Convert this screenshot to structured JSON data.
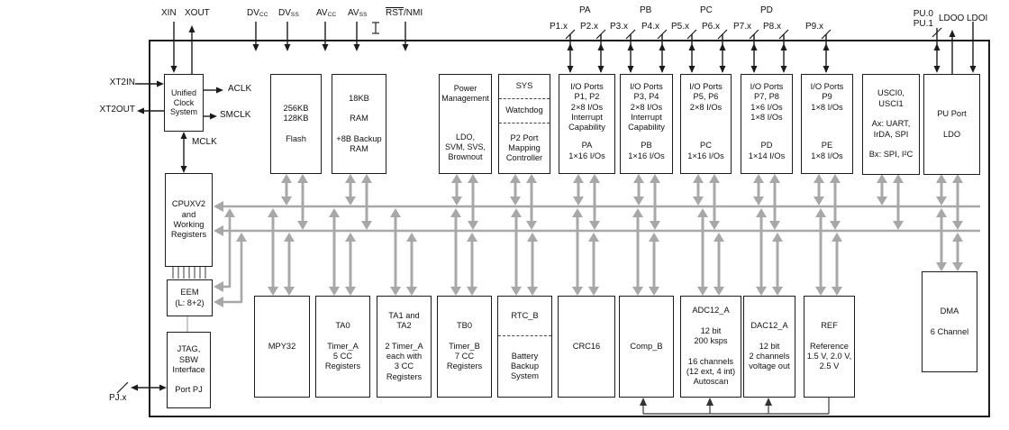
{
  "pins": {
    "xin": "XIN",
    "xout": "XOUT",
    "dvcc_base": "DV",
    "dvcc_sub": "CC",
    "dvss_base": "DV",
    "dvss_sub": "SS",
    "avcc_base": "AV",
    "avcc_sub": "CC",
    "avss_base": "AV",
    "avss_sub": "SS",
    "rst_over": "RST",
    "rst_rest": "/NMI",
    "pa": "PA",
    "pb": "PB",
    "pc": "PC",
    "pd": "PD",
    "p1": "P1.x",
    "p2": "P2.x",
    "p3": "P3.x",
    "p4": "P4.x",
    "p5": "P5.x",
    "p6": "P6.x",
    "p7": "P7.x",
    "p8": "P8.x",
    "p9": "P9.x",
    "pu0": "PU.0",
    "pu1": "PU.1",
    "ldoo": "LDOO",
    "ldoi": "LDOI",
    "xt2in": "XT2IN",
    "xt2out": "XT2OUT",
    "pjx": "PJ.x",
    "aclk": "ACLK",
    "smclk": "SMCLK",
    "mclk": "MCLK"
  },
  "blocks": {
    "ucs": {
      "text": "Unified\nClock\nSystem"
    },
    "cpu": {
      "text": "CPUXV2\nand\nWorking\nRegisters"
    },
    "eem": {
      "text": "EEM\n(L: 8+2)"
    },
    "jtag": {
      "text": "JTAG,\nSBW\nInterface\n\nPort PJ"
    },
    "flash": {
      "text": "256KB\n128KB\n\nFlash"
    },
    "ram": {
      "text": "18KB\n\nRAM\n\n+8B Backup\nRAM"
    },
    "pmm": {
      "top": "Power\nManagement",
      "bottom": "LDO,\nSVM, SVS,\nBrownout"
    },
    "sys": {
      "s1": "SYS",
      "s2": "Watchdog",
      "s3": "P2 Port\nMapping\nController"
    },
    "io12": {
      "top": "I/O Ports\nP1, P2\n2×8 I/Os\nInterrupt\nCapability",
      "bottom": "PA\n1×16 I/Os"
    },
    "io34": {
      "top": "I/O Ports\nP3, P4\n2×8 I/Os\nInterrupt\nCapability",
      "bottom": "PB\n1×16 I/Os"
    },
    "io56": {
      "top": "I/O Ports\nP5, P6\n2×8 I/Os",
      "bottom": "PC\n1×16 I/Os"
    },
    "io78": {
      "top": "I/O Ports\nP7, P8\n1×6 I/Os\n1×8 I/Os",
      "bottom": "PD\n1×14 I/Os"
    },
    "io9": {
      "top": "I/O Ports\nP9\n1×8 I/Os",
      "bottom": "PE\n1×8 I/Os"
    },
    "usci": {
      "text": "USCI0,\nUSCI1\n\nAx: UART,\nIrDA, SPI\n\nBx: SPI, I²C"
    },
    "puport": {
      "text": "PU Port\n\nLDO"
    },
    "mpy": {
      "text": "MPY32"
    },
    "ta0": {
      "text": "TA0\n\nTimer_A\n5 CC\nRegisters"
    },
    "ta12": {
      "text": "TA1 and\nTA2\n\n2 Timer_A\neach with\n3 CC\nRegisters"
    },
    "tb0": {
      "text": "TB0\n\nTimer_B\n7 CC\nRegisters"
    },
    "rtc": {
      "s1": "RTC_B",
      "s2": "Battery\nBackup\nSystem"
    },
    "crc": {
      "text": "CRC16"
    },
    "compb": {
      "text": "Comp_B"
    },
    "adc": {
      "text": "ADC12_A\n\n12 bit\n200 ksps\n\n16 channels\n(12 ext, 4 int)\nAutoscan"
    },
    "dac": {
      "text": "DAC12_A\n\n12 bit\n2 channels\nvoltage out"
    },
    "ref": {
      "text": "REF\n\nReference\n1.5 V, 2.0 V,\n2.5 V"
    },
    "dma": {
      "text": "DMA\n\n6 Channel"
    }
  },
  "colors": {
    "bus_gray": "#a8a8a8",
    "line_black": "#1b1b1b",
    "block_border": "#1c1c1c",
    "background": "#ffffff"
  }
}
